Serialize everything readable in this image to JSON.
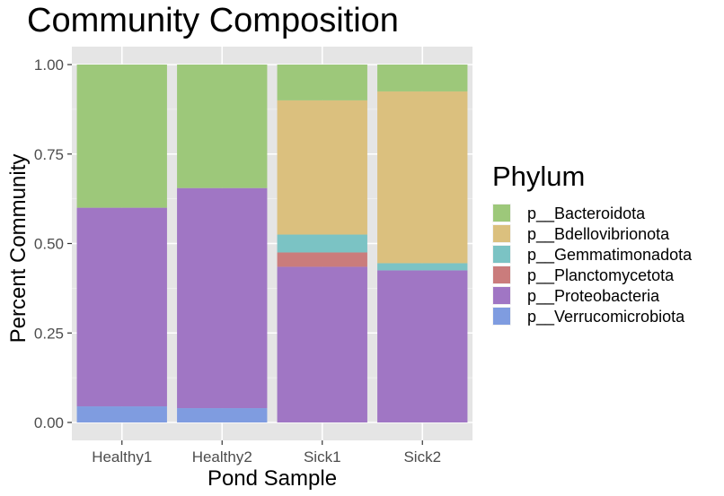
{
  "chart_data": {
    "type": "bar",
    "stacked": true,
    "title": "Community Composition",
    "xlabel": "Pond Sample",
    "ylabel": "Percent Community",
    "ylim": [
      0,
      1
    ],
    "yticks": [
      "0.00",
      "0.25",
      "0.50",
      "0.75",
      "1.00"
    ],
    "ytick_values": [
      0,
      0.25,
      0.5,
      0.75,
      1
    ],
    "grid": true,
    "legend": {
      "title": "Phylum",
      "position": "right"
    },
    "categories": [
      "Healthy1",
      "Healthy2",
      "Sick1",
      "Sick2"
    ],
    "series": [
      {
        "name": "p__Bacteroidota",
        "color": "#9DC87A",
        "values": [
          0.4,
          0.345,
          0.1,
          0.075
        ]
      },
      {
        "name": "p__Bdellovibrionota",
        "color": "#DBC07E",
        "values": [
          0.0,
          0.0,
          0.375,
          0.48
        ]
      },
      {
        "name": "p__Gemmatimonadota",
        "color": "#7BC3C4",
        "values": [
          0.0,
          0.0,
          0.05,
          0.02
        ]
      },
      {
        "name": "p__Planctomycetota",
        "color": "#CA7C7C",
        "values": [
          0.0,
          0.0,
          0.04,
          0.0
        ]
      },
      {
        "name": "p__Proteobacteria",
        "color": "#A076C4",
        "values": [
          0.555,
          0.615,
          0.435,
          0.425
        ]
      },
      {
        "name": "p__Verrucomicrobiota",
        "color": "#7F9CE0",
        "values": [
          0.045,
          0.04,
          0.0,
          0.0
        ]
      }
    ]
  }
}
